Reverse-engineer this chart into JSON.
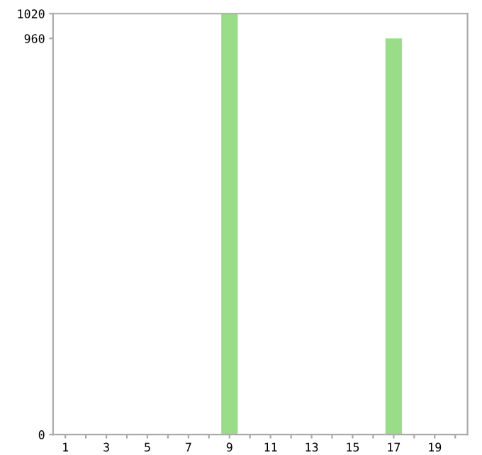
{
  "chart_data": {
    "type": "bar",
    "categories": [
      "1",
      null,
      "3",
      null,
      "5",
      null,
      "7",
      null,
      "9",
      null,
      "11",
      null,
      "13",
      null,
      "15",
      null,
      "17",
      null,
      "19",
      null
    ],
    "values": [
      0,
      0,
      0,
      0,
      0,
      0,
      0,
      0,
      1020,
      0,
      0,
      0,
      0,
      0,
      0,
      0,
      960,
      0,
      0,
      0
    ],
    "color": "#99dd88",
    "ylim": [
      0,
      1020
    ],
    "yticks": [
      0,
      960,
      1020
    ],
    "grid": false,
    "legend": false
  }
}
